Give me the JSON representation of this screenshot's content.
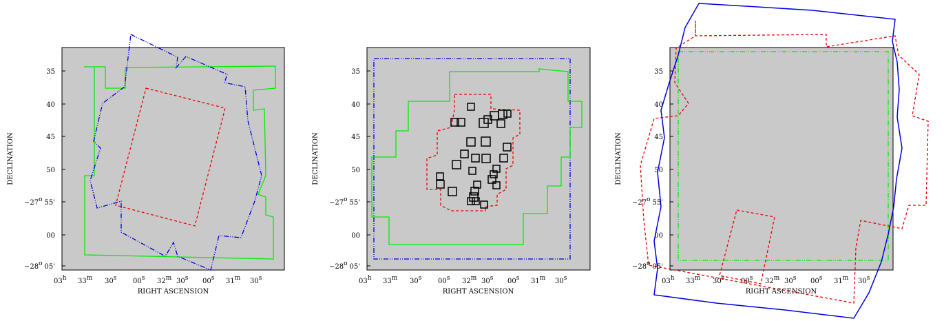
{
  "panels": [
    {
      "x_label": "RIGHT ASCENSION",
      "y_label": "DECLINATION",
      "x_ticks": [
        {
          "num": "03",
          "unit": "h"
        },
        {
          "num": "33",
          "unit": "m"
        },
        {
          "num": "30",
          "unit": "s"
        },
        {
          "num": "00",
          "unit": "s"
        },
        {
          "num": "32",
          "unit": "m"
        },
        {
          "num": "30",
          "unit": "s"
        },
        {
          "num": "00",
          "unit": "s"
        },
        {
          "num": "31",
          "unit": "m"
        },
        {
          "num": "30",
          "unit": "s"
        }
      ],
      "y_ticks": [
        {
          "deg": "35"
        },
        {
          "deg": "40"
        },
        {
          "deg": "45"
        },
        {
          "deg": "50"
        },
        {
          "deg": "−27",
          "sup": "o",
          "min": "55'"
        },
        {
          "deg": "00"
        },
        {
          "deg": "−28",
          "sup": "o",
          "min": "05'"
        }
      ]
    },
    {
      "x_label": "RIGHT ASCENSION",
      "y_label": "DECLINATION",
      "x_ticks": [
        {
          "num": "03",
          "unit": "h"
        },
        {
          "num": "33",
          "unit": "m"
        },
        {
          "num": "30",
          "unit": "s"
        },
        {
          "num": "00",
          "unit": "s"
        },
        {
          "num": "32",
          "unit": "m"
        },
        {
          "num": "30",
          "unit": "s"
        },
        {
          "num": "00",
          "unit": "s"
        },
        {
          "num": "31",
          "unit": "m"
        },
        {
          "num": "30",
          "unit": "s"
        }
      ],
      "y_ticks": [
        {
          "deg": "35"
        },
        {
          "deg": "40"
        },
        {
          "deg": "45"
        },
        {
          "deg": "50"
        },
        {
          "deg": "−27",
          "sup": "o",
          "min": "55'"
        },
        {
          "deg": "00"
        },
        {
          "deg": "−28",
          "sup": "o",
          "min": "05'"
        }
      ]
    },
    {
      "x_label": "RIGHT ASCENSION",
      "y_label": "DECLINATION",
      "x_ticks": [
        {
          "num": "03",
          "unit": "h"
        },
        {
          "num": "33",
          "unit": "m"
        },
        {
          "num": "30",
          "unit": "s"
        },
        {
          "num": "00",
          "unit": "s"
        },
        {
          "num": "32",
          "unit": "m"
        },
        {
          "num": "30",
          "unit": "s"
        },
        {
          "num": "00",
          "unit": "s"
        },
        {
          "num": "31",
          "unit": "m"
        },
        {
          "num": "30",
          "unit": "s"
        }
      ],
      "y_ticks": [
        {
          "deg": "35"
        },
        {
          "deg": "40"
        },
        {
          "deg": "45"
        },
        {
          "deg": "50"
        },
        {
          "deg": "−27",
          "sup": "o",
          "min": "55'"
        },
        {
          "deg": "00"
        },
        {
          "deg": "−28",
          "sup": "o",
          "min": "05'"
        }
      ]
    }
  ]
}
